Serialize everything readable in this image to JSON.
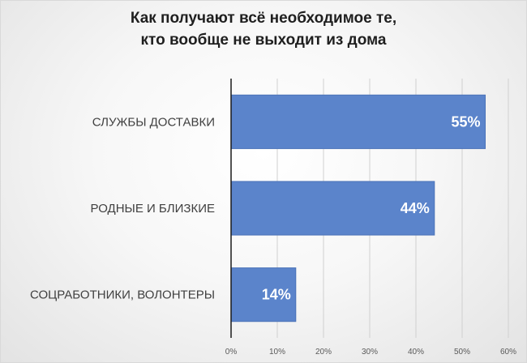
{
  "chart_data": {
    "type": "bar",
    "orientation": "horizontal",
    "title_lines": [
      "Как получают всё необходимое те,",
      "кто вообще не выходит из дома"
    ],
    "categories": [
      "СЛУЖБЫ ДОСТАВКИ",
      "РОДНЫЕ И БЛИЗКИЕ",
      "СОЦРАБОТНИКИ,  ВОЛОНТЕРЫ"
    ],
    "values": [
      55,
      44,
      14
    ],
    "data_labels": [
      "55%",
      "44%",
      "14%"
    ],
    "xlim": [
      0,
      60
    ],
    "x_ticks": [
      0,
      10,
      20,
      30,
      40,
      50,
      60
    ],
    "x_tick_labels": [
      "0%",
      "10%",
      "20%",
      "30%",
      "40%",
      "50%",
      "60%"
    ],
    "grid": "vertical",
    "legend": "none",
    "colors": {
      "bar": "#5b84cb",
      "bar_border": "#4a72b8",
      "grid": "#d0d0d0",
      "axis": "#1a1a1a",
      "background_center": "#ffffff",
      "background_edge": "#e3e3e3"
    }
  }
}
